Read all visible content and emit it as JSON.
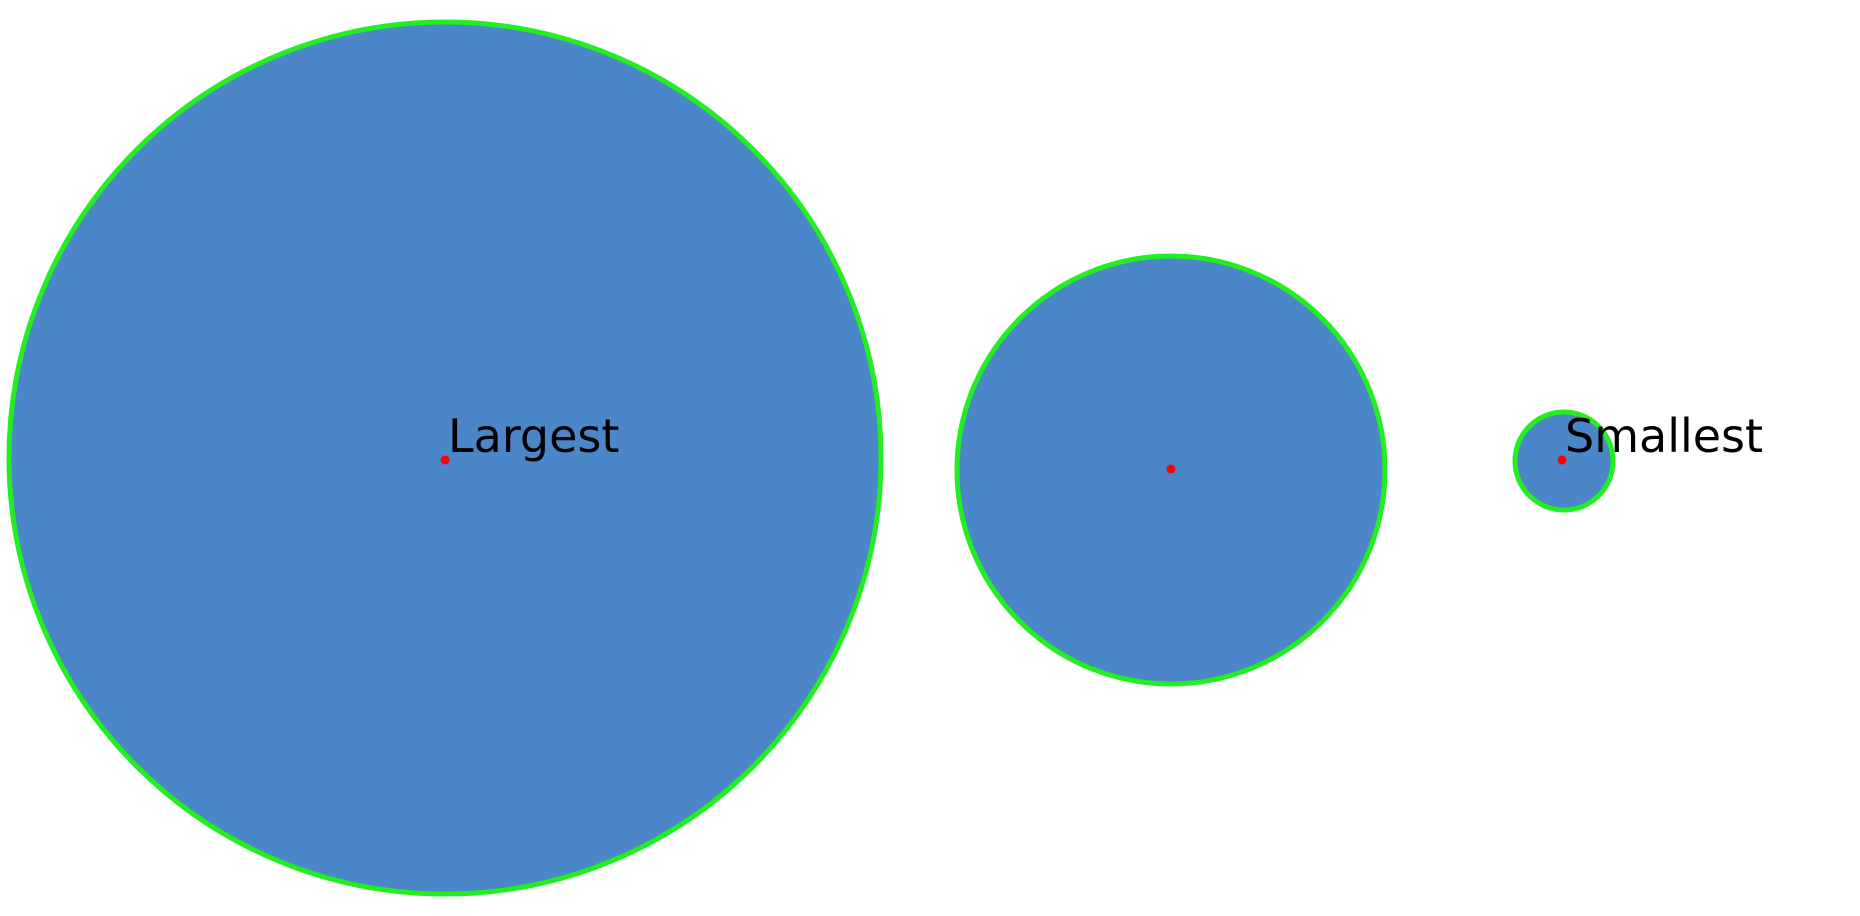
{
  "labels": {
    "largest": "Largest",
    "smallest": "Smallest"
  },
  "colors": {
    "background": "#ffffff",
    "circle_fill": "#4a86c8",
    "contour": "#22ee22",
    "center_dot": "#ff0000",
    "text": "#000000"
  }
}
